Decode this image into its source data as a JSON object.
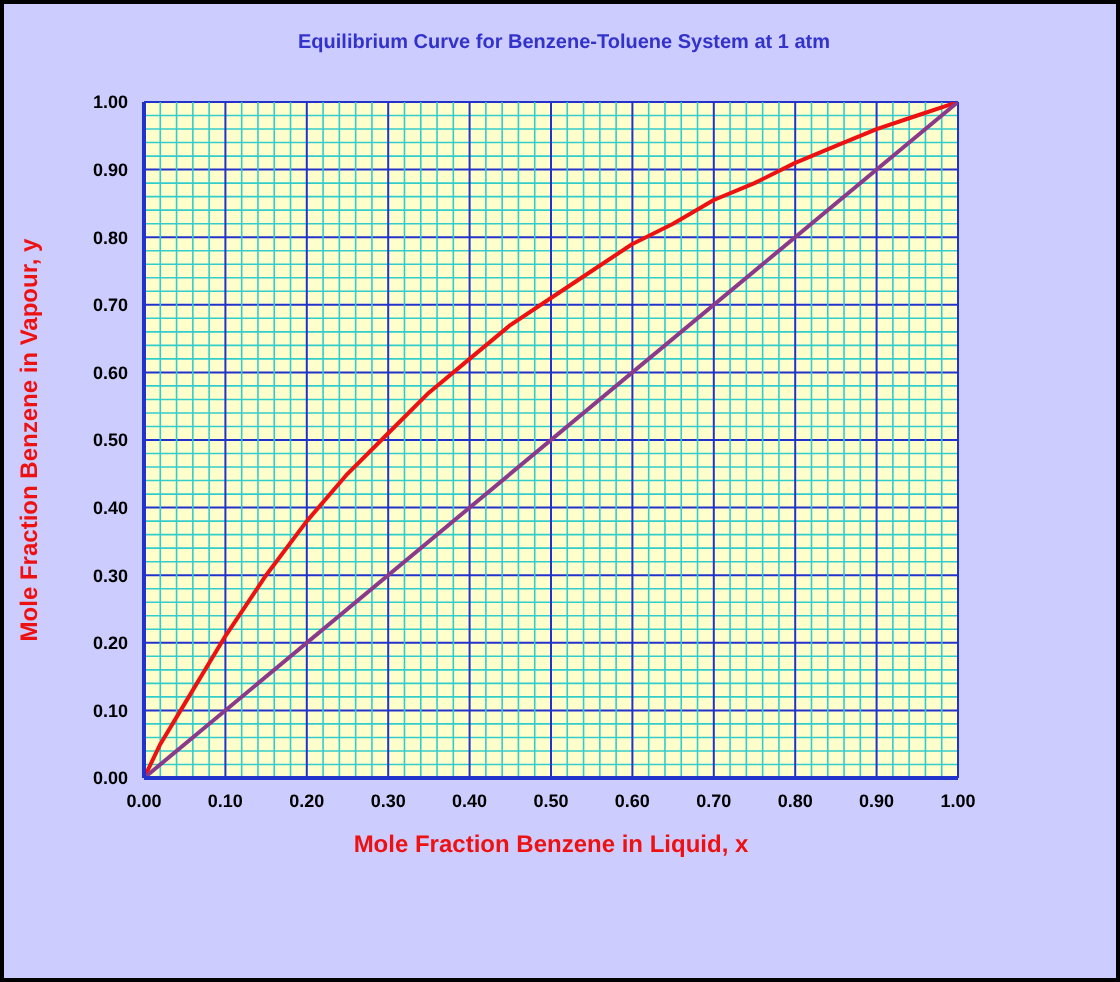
{
  "chart_data": {
    "type": "line",
    "title": "Equilibrium Curve for Benzene-Toluene System at 1 atm",
    "xlabel": "Mole Fraction Benzene in Liquid, x",
    "ylabel": "Mole Fraction Benzene in Vapour, y",
    "series": [
      {
        "color": "#ee1111",
        "x": [
          0,
          0.02,
          0.05,
          0.1,
          0.15,
          0.2,
          0.25,
          0.3,
          0.35,
          0.4,
          0.45,
          0.5,
          0.55,
          0.6,
          0.65,
          0.7,
          0.75,
          0.8,
          0.85,
          0.9,
          0.95,
          1
        ],
        "values": [
          0,
          0.05,
          0.11,
          0.21,
          0.3,
          0.38,
          0.45,
          0.51,
          0.57,
          0.62,
          0.67,
          0.71,
          0.75,
          0.79,
          0.82,
          0.855,
          0.88,
          0.91,
          0.935,
          0.96,
          0.98,
          1
        ]
      },
      {
        "color": "#8b3a8b",
        "x": [
          0,
          1
        ],
        "values": [
          0,
          1
        ]
      }
    ],
    "xlim": [
      0,
      1
    ],
    "ylim": [
      0,
      1
    ],
    "xticks": [
      {
        "value": 0,
        "label": "0.00"
      },
      {
        "value": 0.02,
        "label": null
      },
      {
        "value": 0.04,
        "label": null
      },
      {
        "value": 0.06,
        "label": null
      },
      {
        "value": 0.08,
        "label": null
      },
      {
        "value": 0.1,
        "label": "0.10"
      },
      {
        "value": 0.12,
        "label": null
      },
      {
        "value": 0.14,
        "label": null
      },
      {
        "value": 0.16,
        "label": null
      },
      {
        "value": 0.18,
        "label": null
      },
      {
        "value": 0.2,
        "label": "0.20"
      },
      {
        "value": 0.22,
        "label": null
      },
      {
        "value": 0.24,
        "label": null
      },
      {
        "value": 0.26,
        "label": null
      },
      {
        "value": 0.28,
        "label": null
      },
      {
        "value": 0.3,
        "label": "0.30"
      },
      {
        "value": 0.32,
        "label": null
      },
      {
        "value": 0.34,
        "label": null
      },
      {
        "value": 0.36,
        "label": null
      },
      {
        "value": 0.38,
        "label": null
      },
      {
        "value": 0.4,
        "label": "0.40"
      },
      {
        "value": 0.42,
        "label": null
      },
      {
        "value": 0.44,
        "label": null
      },
      {
        "value": 0.46,
        "label": null
      },
      {
        "value": 0.48,
        "label": null
      },
      {
        "value": 0.5,
        "label": "0.50"
      },
      {
        "value": 0.52,
        "label": null
      },
      {
        "value": 0.54,
        "label": null
      },
      {
        "value": 0.56,
        "label": null
      },
      {
        "value": 0.58,
        "label": null
      },
      {
        "value": 0.6,
        "label": "0.60"
      },
      {
        "value": 0.62,
        "label": null
      },
      {
        "value": 0.64,
        "label": null
      },
      {
        "value": 0.66,
        "label": null
      },
      {
        "value": 0.68,
        "label": null
      },
      {
        "value": 0.7,
        "label": "0.70"
      },
      {
        "value": 0.72,
        "label": null
      },
      {
        "value": 0.74,
        "label": null
      },
      {
        "value": 0.76,
        "label": null
      },
      {
        "value": 0.78,
        "label": null
      },
      {
        "value": 0.8,
        "label": "0.80"
      },
      {
        "value": 0.82,
        "label": null
      },
      {
        "value": 0.84,
        "label": null
      },
      {
        "value": 0.86,
        "label": null
      },
      {
        "value": 0.88,
        "label": null
      },
      {
        "value": 0.9,
        "label": "0.90"
      },
      {
        "value": 0.92,
        "label": null
      },
      {
        "value": 0.94,
        "label": null
      },
      {
        "value": 0.96,
        "label": null
      },
      {
        "value": 0.98,
        "label": null
      },
      {
        "value": 1,
        "label": "1.00"
      }
    ],
    "yticks": [
      {
        "value": 0,
        "label": "0.00"
      },
      {
        "value": 0.02,
        "label": null
      },
      {
        "value": 0.04,
        "label": null
      },
      {
        "value": 0.06,
        "label": null
      },
      {
        "value": 0.08,
        "label": null
      },
      {
        "value": 0.1,
        "label": "0.10"
      },
      {
        "value": 0.12,
        "label": null
      },
      {
        "value": 0.14,
        "label": null
      },
      {
        "value": 0.16,
        "label": null
      },
      {
        "value": 0.18,
        "label": null
      },
      {
        "value": 0.2,
        "label": "0.20"
      },
      {
        "value": 0.22,
        "label": null
      },
      {
        "value": 0.24,
        "label": null
      },
      {
        "value": 0.26,
        "label": null
      },
      {
        "value": 0.28,
        "label": null
      },
      {
        "value": 0.3,
        "label": "0.30"
      },
      {
        "value": 0.32,
        "label": null
      },
      {
        "value": 0.34,
        "label": null
      },
      {
        "value": 0.36,
        "label": null
      },
      {
        "value": 0.38,
        "label": null
      },
      {
        "value": 0.4,
        "label": "0.40"
      },
      {
        "value": 0.42,
        "label": null
      },
      {
        "value": 0.44,
        "label": null
      },
      {
        "value": 0.46,
        "label": null
      },
      {
        "value": 0.48,
        "label": null
      },
      {
        "value": 0.5,
        "label": "0.50"
      },
      {
        "value": 0.52,
        "label": null
      },
      {
        "value": 0.54,
        "label": null
      },
      {
        "value": 0.56,
        "label": null
      },
      {
        "value": 0.58,
        "label": null
      },
      {
        "value": 0.6,
        "label": "0.60"
      },
      {
        "value": 0.62,
        "label": null
      },
      {
        "value": 0.64,
        "label": null
      },
      {
        "value": 0.66,
        "label": null
      },
      {
        "value": 0.68,
        "label": null
      },
      {
        "value": 0.7,
        "label": "0.70"
      },
      {
        "value": 0.72,
        "label": null
      },
      {
        "value": 0.74,
        "label": null
      },
      {
        "value": 0.76,
        "label": null
      },
      {
        "value": 0.78,
        "label": null
      },
      {
        "value": 0.8,
        "label": "0.80"
      },
      {
        "value": 0.82,
        "label": null
      },
      {
        "value": 0.84,
        "label": null
      },
      {
        "value": 0.86,
        "label": null
      },
      {
        "value": 0.88,
        "label": null
      },
      {
        "value": 0.9,
        "label": "0.90"
      },
      {
        "value": 0.92,
        "label": null
      },
      {
        "value": 0.94,
        "label": null
      },
      {
        "value": 0.96,
        "label": null
      },
      {
        "value": 0.98,
        "label": null
      },
      {
        "value": 1,
        "label": "1.00"
      }
    ],
    "grid": true,
    "marker": "none",
    "line_style": "solid"
  }
}
